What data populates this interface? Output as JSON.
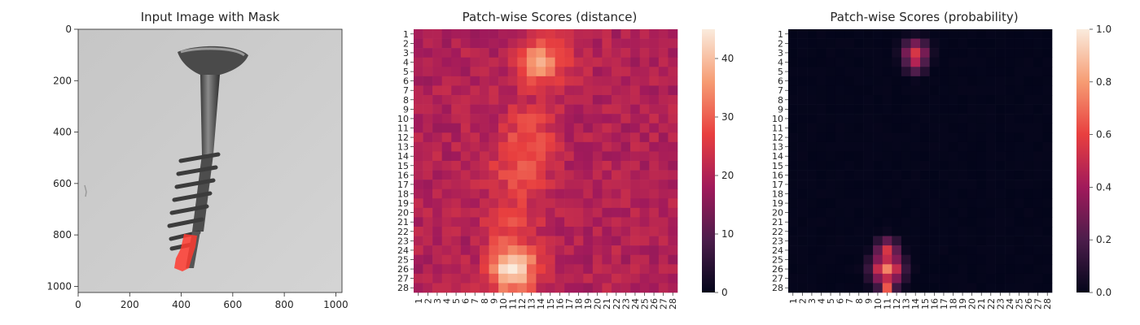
{
  "chart_data": [
    {
      "type": "image",
      "title": "Input Image with Mask",
      "xlim": [
        0,
        1024
      ],
      "ylim": [
        1024,
        0
      ],
      "xticks": [
        0,
        200,
        400,
        600,
        800,
        1000
      ],
      "yticks": [
        0,
        200,
        400,
        600,
        800,
        1000
      ],
      "image_description": "grayscale photo of a screw on a light background with a red mask over a damaged region near the tip",
      "mask_color": "#ff3b30"
    },
    {
      "type": "heatmap",
      "title": "Patch-wise Scores (distance)",
      "x_categories": [
        "1",
        "2",
        "3",
        "4",
        "5",
        "6",
        "7",
        "8",
        "9",
        "10",
        "11",
        "12",
        "13",
        "14",
        "15",
        "16",
        "17",
        "18",
        "19",
        "20",
        "21",
        "22",
        "23",
        "24",
        "25",
        "26",
        "27",
        "28"
      ],
      "y_categories": [
        "1",
        "2",
        "3",
        "4",
        "5",
        "6",
        "7",
        "8",
        "9",
        "10",
        "11",
        "12",
        "13",
        "14",
        "15",
        "16",
        "17",
        "18",
        "19",
        "20",
        "21",
        "22",
        "23",
        "24",
        "25",
        "26",
        "27",
        "28"
      ],
      "colorbar": {
        "min": 0,
        "max": 45,
        "ticks": [
          0,
          10,
          20,
          30,
          40
        ]
      },
      "colormap": "rocket",
      "base_value": 20,
      "hotspots": [
        {
          "row": 4,
          "col": 14,
          "value": 36,
          "spread": 1.8
        },
        {
          "row": 11,
          "col": 13,
          "value": 27,
          "spread": 1.8
        },
        {
          "row": 15,
          "col": 12,
          "value": 29,
          "spread": 2.2
        },
        {
          "row": 21,
          "col": 11,
          "value": 27,
          "spread": 2.0
        },
        {
          "row": 26,
          "col": 11,
          "value": 45,
          "spread": 1.7
        }
      ]
    },
    {
      "type": "heatmap",
      "title": "Patch-wise Scores (probability)",
      "x_categories": [
        "1",
        "2",
        "3",
        "4",
        "5",
        "6",
        "7",
        "8",
        "9",
        "10",
        "11",
        "12",
        "13",
        "14",
        "15",
        "16",
        "17",
        "18",
        "19",
        "20",
        "21",
        "22",
        "23",
        "24",
        "25",
        "26",
        "27",
        "28"
      ],
      "y_categories": [
        "1",
        "2",
        "3",
        "4",
        "5",
        "6",
        "7",
        "8",
        "9",
        "10",
        "11",
        "12",
        "13",
        "14",
        "15",
        "16",
        "17",
        "18",
        "19",
        "20",
        "21",
        "22",
        "23",
        "24",
        "25",
        "26",
        "27",
        "28"
      ],
      "colorbar": {
        "min": 0.0,
        "max": 1.0,
        "ticks": [
          "0.0",
          "0.2",
          "0.4",
          "0.6",
          "0.8",
          "1.0"
        ]
      },
      "colormap": "rocket",
      "base_value": 0.0,
      "hotspots": [
        {
          "row": 3,
          "col": 14,
          "value": 0.55,
          "spread": 0.9
        },
        {
          "row": 4,
          "col": 14,
          "value": 0.45,
          "spread": 0.8
        },
        {
          "row": 26,
          "col": 11,
          "value": 0.75,
          "spread": 1.1
        },
        {
          "row": 24,
          "col": 11,
          "value": 0.55,
          "spread": 0.8
        },
        {
          "row": 28,
          "col": 11,
          "value": 0.65,
          "spread": 0.6
        }
      ]
    }
  ]
}
